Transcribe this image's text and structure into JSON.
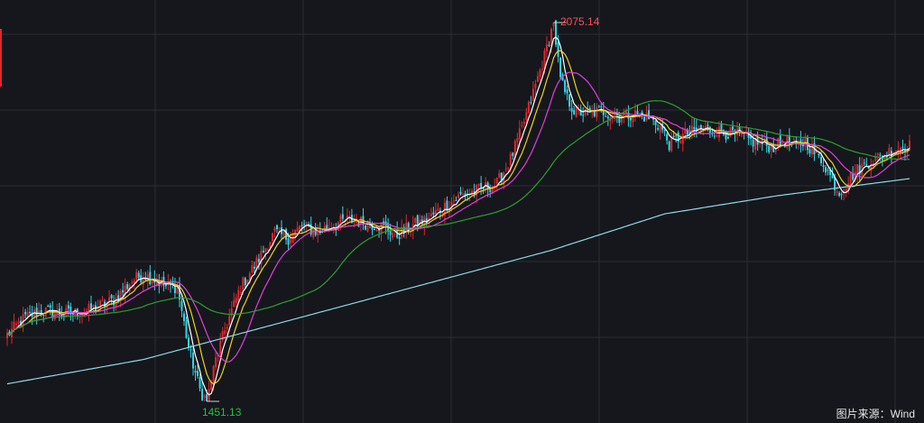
{
  "chart_data": {
    "type": "candlestick",
    "annotations": {
      "high": "2075.14",
      "low": "1451.13"
    },
    "source": "图片来源：Wind",
    "high_value": 2075.14,
    "low_value": 1451.13,
    "colors": {
      "background": "#15171c",
      "grid": "#2a2d34",
      "up": "#e0262f",
      "down": "#33d6e6",
      "ma5": "#ffffff",
      "ma10": "#f0d21e",
      "ma20": "#e23fd9",
      "ma60": "#2f9e2f",
      "ma120": "#8fd8e6"
    },
    "series": [
      {
        "id": "ma5",
        "color_key": "ma5"
      },
      {
        "id": "ma10",
        "color_key": "ma10"
      },
      {
        "id": "ma20",
        "color_key": "ma20"
      },
      {
        "id": "ma60",
        "color_key": "ma60"
      },
      {
        "id": "ma120",
        "color_key": "ma120"
      }
    ],
    "close_anchors": [
      [
        0,
        1560
      ],
      [
        8,
        1590
      ],
      [
        15,
        1600
      ],
      [
        25,
        1595
      ],
      [
        35,
        1600
      ],
      [
        42,
        1610
      ],
      [
        48,
        1620
      ],
      [
        55,
        1650
      ],
      [
        60,
        1660
      ],
      [
        66,
        1650
      ],
      [
        70,
        1640
      ],
      [
        75,
        1640
      ],
      [
        80,
        1540
      ],
      [
        85,
        1470
      ],
      [
        88,
        1451.13
      ],
      [
        92,
        1520
      ],
      [
        97,
        1580
      ],
      [
        103,
        1640
      ],
      [
        110,
        1680
      ],
      [
        118,
        1730
      ],
      [
        124,
        1720
      ],
      [
        130,
        1740
      ],
      [
        137,
        1730
      ],
      [
        142,
        1740
      ],
      [
        150,
        1750
      ],
      [
        158,
        1745
      ],
      [
        165,
        1740
      ],
      [
        172,
        1725
      ],
      [
        178,
        1740
      ],
      [
        185,
        1750
      ],
      [
        192,
        1770
      ],
      [
        200,
        1790
      ],
      [
        208,
        1800
      ],
      [
        216,
        1810
      ],
      [
        222,
        1850
      ],
      [
        227,
        1900
      ],
      [
        232,
        1960
      ],
      [
        237,
        2020
      ],
      [
        241,
        2075.14
      ],
      [
        244,
        1980
      ],
      [
        247,
        1950
      ],
      [
        250,
        1930
      ],
      [
        255,
        1925
      ],
      [
        262,
        1930
      ],
      [
        270,
        1920
      ],
      [
        276,
        1925
      ],
      [
        282,
        1920
      ],
      [
        288,
        1905
      ],
      [
        292,
        1875
      ],
      [
        296,
        1885
      ],
      [
        302,
        1895
      ],
      [
        308,
        1900
      ],
      [
        315,
        1895
      ],
      [
        322,
        1890
      ],
      [
        328,
        1880
      ],
      [
        333,
        1875
      ],
      [
        338,
        1870
      ],
      [
        343,
        1880
      ],
      [
        348,
        1870
      ],
      [
        352,
        1880
      ],
      [
        356,
        1860
      ],
      [
        360,
        1845
      ],
      [
        364,
        1815
      ],
      [
        367,
        1795
      ],
      [
        370,
        1810
      ],
      [
        374,
        1830
      ],
      [
        378,
        1840
      ],
      [
        382,
        1850
      ],
      [
        386,
        1855
      ],
      [
        390,
        1865
      ],
      [
        394,
        1870
      ],
      [
        398,
        1872
      ]
    ],
    "ma120_anchors": [
      [
        0,
        1480
      ],
      [
        60,
        1520
      ],
      [
        100,
        1560
      ],
      [
        160,
        1620
      ],
      [
        200,
        1660
      ],
      [
        240,
        1700
      ],
      [
        290,
        1760
      ],
      [
        340,
        1790
      ],
      [
        398,
        1818
      ]
    ]
  }
}
